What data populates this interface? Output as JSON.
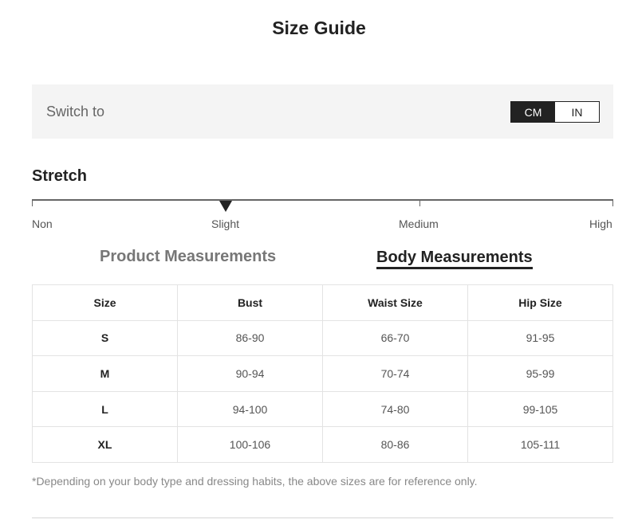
{
  "title": "Size Guide",
  "unit_switch": {
    "label": "Switch to",
    "options": [
      "CM",
      "IN"
    ],
    "selected": "CM"
  },
  "stretch": {
    "title": "Stretch",
    "levels": [
      "Non",
      "Slight",
      "Medium",
      "High"
    ],
    "selected": "Slight"
  },
  "tabs": [
    {
      "label": "Product Measurements",
      "active": false
    },
    {
      "label": "Body Measurements",
      "active": true
    }
  ],
  "table": {
    "headers": [
      "Size",
      "Bust",
      "Waist Size",
      "Hip Size"
    ],
    "rows": [
      [
        "S",
        "86-90",
        "66-70",
        "91-95"
      ],
      [
        "M",
        "90-94",
        "70-74",
        "95-99"
      ],
      [
        "L",
        "94-100",
        "74-80",
        "99-105"
      ],
      [
        "XL",
        "100-106",
        "80-86",
        "105-111"
      ]
    ]
  },
  "note": "*Depending on your body type and dressing habits, the above sizes are for reference only."
}
